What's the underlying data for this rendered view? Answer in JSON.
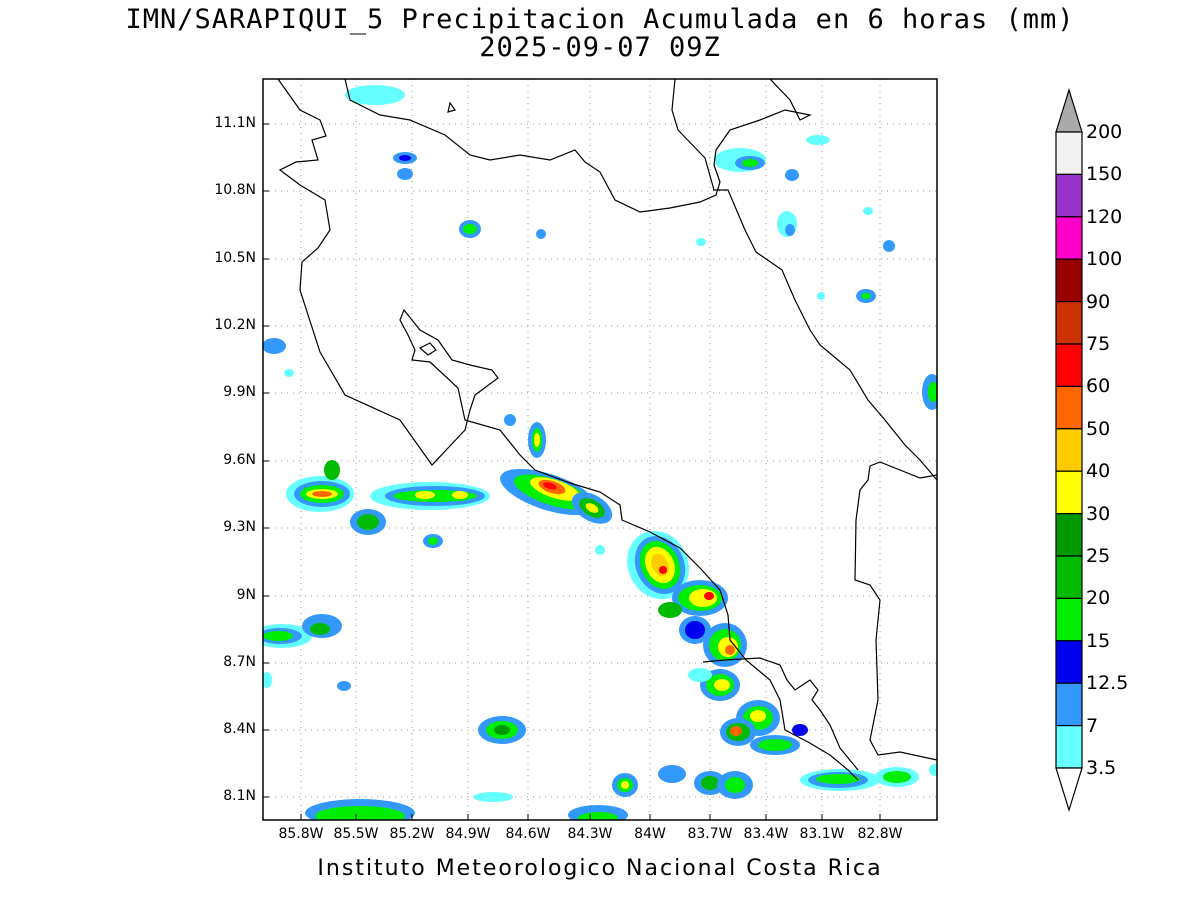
{
  "title": {
    "line1": "IMN/SARAPIQUI_5 Precipitacion Acumulada en 6 horas (mm)",
    "line2": "2025-09-07 09Z"
  },
  "footer": "Instituto Meteorologico Nacional Costa Rica",
  "axes": {
    "lat_labels": [
      "11.1N",
      "10.8N",
      "10.5N",
      "10.2N",
      "9.9N",
      "9.6N",
      "9.3N",
      "9N",
      "8.7N",
      "8.4N",
      "8.1N"
    ],
    "lon_labels": [
      "85.8W",
      "85.5W",
      "85.2W",
      "84.9W",
      "84.6W",
      "84.3W",
      "84W",
      "83.7W",
      "83.4W",
      "83.1W",
      "82.8W"
    ],
    "lat_range": [
      8.0,
      11.3
    ],
    "lon_range": [
      -86.0,
      -82.6
    ],
    "grid": "dotted"
  },
  "colorbar": {
    "labels": [
      "200",
      "150",
      "120",
      "100",
      "90",
      "75",
      "60",
      "50",
      "40",
      "30",
      "25",
      "20",
      "15",
      "12.5",
      "7",
      "3.5"
    ],
    "colors": [
      "#f2f2f2",
      "#9933cc",
      "#ff00cc",
      "#990000",
      "#cc3300",
      "#ff0000",
      "#ff6600",
      "#ffcc00",
      "#ffff00",
      "#009900",
      "#00bb00",
      "#00ee00",
      "#0000ee",
      "#3399ff",
      "#66ffff"
    ],
    "over_color": "#aaaaaa",
    "under_color": "#ffffff"
  },
  "legend_levels": {
    "l3_5": "#66ffff",
    "l7": "#3399ff",
    "l12_5": "#0000ee",
    "l15": "#00ee00",
    "l20": "#00bb00",
    "l25": "#009900",
    "l30": "#ffff00",
    "l40": "#ffcc00",
    "l50": "#ff6600",
    "l60": "#ff0000"
  }
}
